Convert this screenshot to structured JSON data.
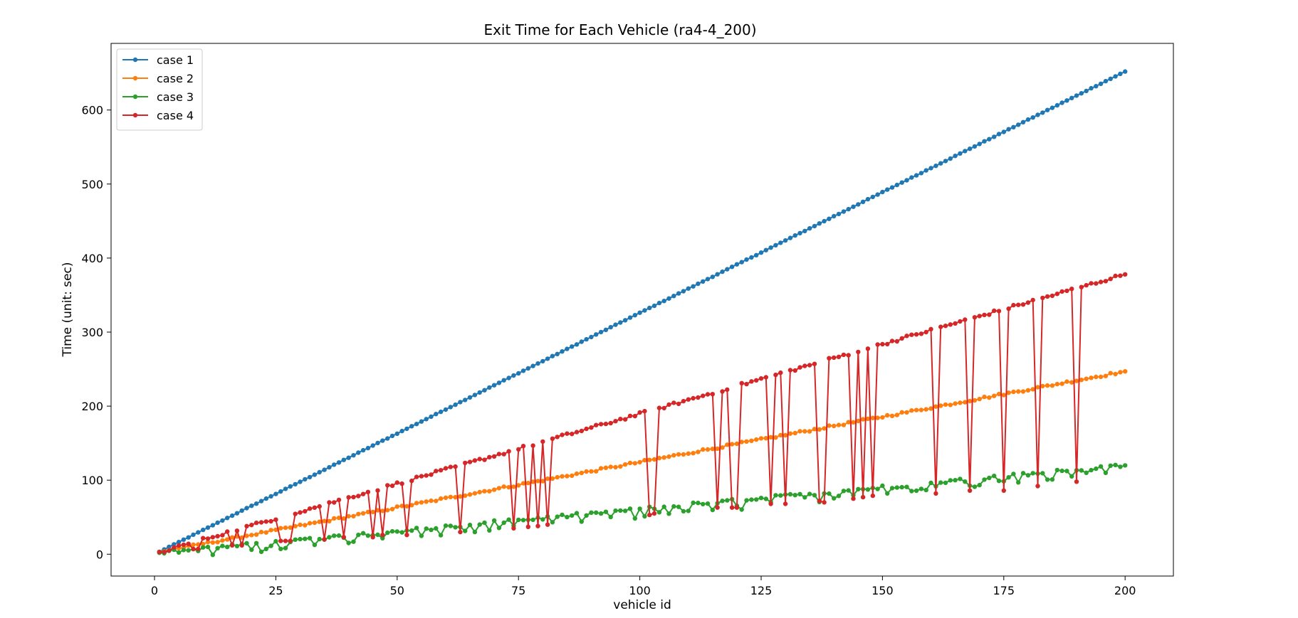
{
  "chart_data": {
    "type": "line",
    "title": "Exit Time for Each Vehicle (ra4-4_200)",
    "xlabel": "vehicle id",
    "ylabel": "Time (unit: sec)",
    "xlim": [
      -8.95,
      209.95
    ],
    "ylim": [
      -29.5,
      690
    ],
    "xticks": [
      0,
      25,
      50,
      75,
      100,
      125,
      150,
      175,
      200
    ],
    "yticks": [
      0,
      100,
      200,
      300,
      400,
      500,
      600
    ],
    "grid": false,
    "legend_position": "top-left",
    "series": [
      {
        "name": "case 1",
        "color": "#1f77b4",
        "x": [
          1,
          200
        ],
        "y": [
          3.3,
          652
        ]
      },
      {
        "name": "case 2",
        "color": "#ff7f0e",
        "x": [
          1,
          200
        ],
        "y": [
          3,
          247
        ]
      },
      {
        "name": "case 3",
        "color": "#2ca02c",
        "x": [
          1,
          200
        ],
        "y": [
          2,
          120
        ]
      },
      {
        "name": "case 4",
        "color": "#d62728",
        "x": [
          1,
          200
        ],
        "y": [
          3,
          378
        ],
        "drop_ids": [
          3,
          8,
          9,
          16,
          18,
          26,
          27,
          28,
          35,
          39,
          45,
          47,
          52,
          63,
          74,
          77,
          79,
          81,
          102,
          103,
          116,
          119,
          120,
          127,
          130,
          137,
          138,
          144,
          146,
          148,
          161,
          168,
          175,
          182,
          190
        ],
        "drop_values": [
          5,
          7,
          7,
          12,
          12,
          18,
          18,
          18,
          20,
          23,
          23,
          26,
          26,
          30,
          35,
          37,
          38,
          40,
          53,
          55,
          63,
          63,
          63,
          68,
          68,
          72,
          70,
          75,
          77,
          79,
          82,
          86,
          86,
          92,
          98
        ]
      }
    ]
  }
}
